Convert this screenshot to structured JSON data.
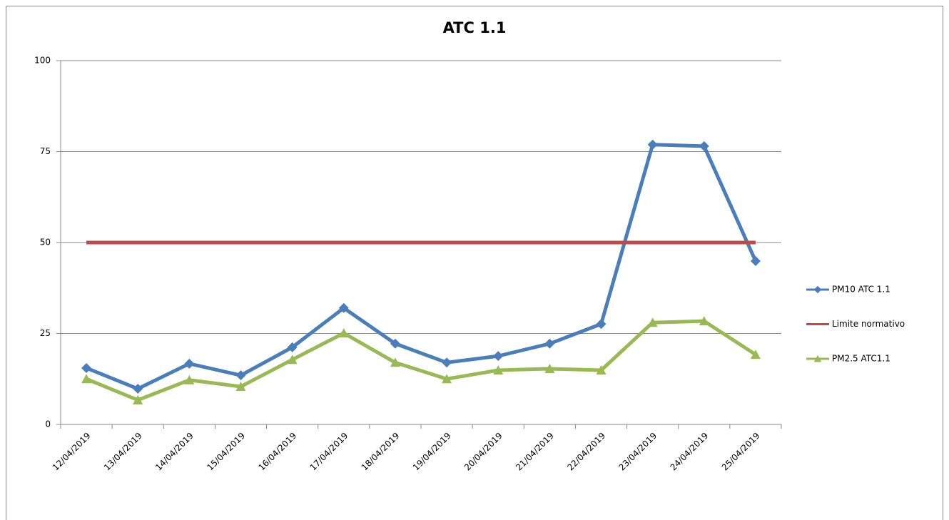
{
  "chart_data": {
    "type": "line",
    "title": "ATC 1.1",
    "categories": [
      "12/04/2019",
      "13/04/2019",
      "14/04/2019",
      "15/04/2019",
      "16/04/2019",
      "17/04/2019",
      "18/04/2019",
      "19/04/2019",
      "20/04/2019",
      "21/04/2019",
      "22/04/2019",
      "23/04/2019",
      "24/04/2019",
      "25/04/2019"
    ],
    "series": [
      {
        "name": "PM10 ATC 1.1",
        "color": "#4a7ebb",
        "marker": "diamond",
        "values": [
          15.5,
          9.8,
          16.7,
          13.5,
          21.2,
          32,
          22.2,
          17,
          18.8,
          22.2,
          27.6,
          76.9,
          76.5,
          44.9
        ]
      },
      {
        "name": "Limite normativo",
        "color": "#be4b48",
        "marker": "none",
        "values": [
          50,
          50,
          50,
          50,
          50,
          50,
          50,
          50,
          50,
          50,
          50,
          50,
          50,
          50
        ]
      },
      {
        "name": "PM2.5 ATC1.1",
        "color": "#98b954",
        "marker": "triangle",
        "values": [
          12.5,
          6.7,
          12.2,
          10.4,
          17.8,
          25.1,
          17,
          12.5,
          14.9,
          15.3,
          14.9,
          28,
          28.4,
          19.2
        ]
      }
    ],
    "ylim": [
      0,
      100
    ],
    "yticks": [
      0,
      25,
      50,
      75,
      100
    ],
    "grid": true,
    "legend": "right"
  }
}
